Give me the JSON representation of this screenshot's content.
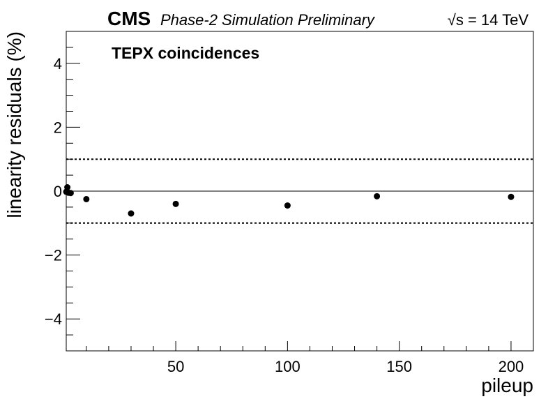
{
  "header": {
    "experiment": "CMS",
    "status": "Phase-2 Simulation Preliminary",
    "sqrt_symbol": "√s",
    "energy": " = 14 TeV"
  },
  "chart_data": {
    "type": "scatter",
    "title": "TEPX coincidences",
    "xlabel": "pileup",
    "ylabel": "linearity residuals (%)",
    "xlim": [
      1,
      210
    ],
    "ylim": [
      -5,
      5
    ],
    "x_ticks": [
      50,
      100,
      150,
      200
    ],
    "y_ticks": [
      -4,
      -2,
      0,
      2,
      4
    ],
    "grid": false,
    "reference_lines": [
      {
        "y": 0,
        "style": "solid"
      },
      {
        "y": 1,
        "style": "dotted"
      },
      {
        "y": -1,
        "style": "dotted"
      }
    ],
    "series": [
      {
        "points": [
          {
            "x": 1,
            "y": -0.02
          },
          {
            "x": 1.5,
            "y": 0.12
          },
          {
            "x": 2,
            "y": -0.05
          },
          {
            "x": 3,
            "y": -0.06
          },
          {
            "x": 10,
            "y": -0.25
          },
          {
            "x": 30,
            "y": -0.7
          },
          {
            "x": 50,
            "y": -0.4
          },
          {
            "x": 100,
            "y": -0.45
          },
          {
            "x": 140,
            "y": -0.16
          },
          {
            "x": 200,
            "y": -0.18
          }
        ],
        "color": "#000000"
      }
    ]
  }
}
